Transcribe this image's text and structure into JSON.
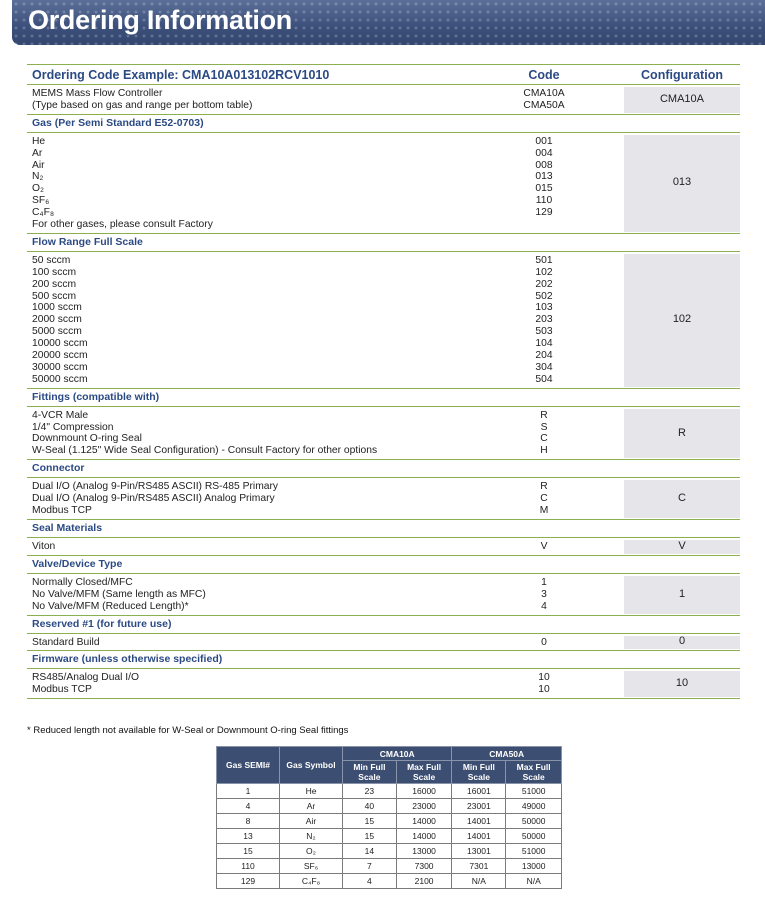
{
  "header": {
    "title": "Ordering Information"
  },
  "ordering": {
    "columns": [
      "Ordering Code Example: CMA10A013102RCV1010",
      "Code",
      "Configuration"
    ],
    "sections": [
      {
        "items": [
          {
            "label": "MEMS Mass Flow Controller",
            "code": "CMA10A"
          },
          {
            "label": "(Type based on gas and range per bottom table)",
            "code": "CMA50A"
          }
        ],
        "configuration": "CMA10A"
      },
      {
        "title": "Gas (Per Semi Standard E52-0703)",
        "items": [
          {
            "label": "He",
            "code": "001"
          },
          {
            "label": "Ar",
            "code": "004"
          },
          {
            "label": "Air",
            "code": "008"
          },
          {
            "label": "N₂",
            "code": "013"
          },
          {
            "label": "O₂",
            "code": "015"
          },
          {
            "label": "SF₆",
            "code": "110"
          },
          {
            "label": "C₄F₈",
            "code": "129"
          },
          {
            "label": "For other gases, please consult Factory"
          }
        ],
        "configuration": "013"
      },
      {
        "title": "Flow Range Full Scale",
        "items": [
          {
            "label": "50 sccm",
            "code": "501"
          },
          {
            "label": "100 sccm",
            "code": "102"
          },
          {
            "label": "200 sccm",
            "code": "202"
          },
          {
            "label": "500 sccm",
            "code": "502"
          },
          {
            "label": "1000 sccm",
            "code": "103"
          },
          {
            "label": "2000 sccm",
            "code": "203"
          },
          {
            "label": "5000 sccm",
            "code": "503"
          },
          {
            "label": "10000 sccm",
            "code": "104"
          },
          {
            "label": "20000 sccm",
            "code": "204"
          },
          {
            "label": "30000 sccm",
            "code": "304"
          },
          {
            "label": "50000 sccm",
            "code": "504"
          }
        ],
        "configuration": "102"
      },
      {
        "title": "Fittings (compatible with)",
        "items": [
          {
            "label": "4-VCR Male",
            "code": "R"
          },
          {
            "label": "1/4\" Compression",
            "code": "S"
          },
          {
            "label": "Downmount O-ring Seal",
            "code": "C"
          },
          {
            "label": "W-Seal (1.125\" Wide Seal Configuration) - Consult Factory for other options",
            "code": "H"
          }
        ],
        "configuration": "R"
      },
      {
        "title": "Connector",
        "items": [
          {
            "label": "Dual I/O (Analog 9-Pin/RS485 ASCII) RS-485 Primary",
            "code": "R"
          },
          {
            "label": "Dual I/O (Analog 9-Pin/RS485 ASCII) Analog Primary",
            "code": "C"
          },
          {
            "label": "Modbus TCP",
            "code": "M"
          }
        ],
        "configuration": "C"
      },
      {
        "title": "Seal Materials",
        "items": [
          {
            "label": "Viton",
            "code": "V"
          }
        ],
        "configuration": "V"
      },
      {
        "title": "Valve/Device Type",
        "items": [
          {
            "label": "Normally Closed/MFC",
            "code": "1"
          },
          {
            "label": "No Valve/MFM (Same length as MFC)",
            "code": "3"
          },
          {
            "label": "No Valve/MFM (Reduced Length)*",
            "code": "4"
          }
        ],
        "configuration": "1"
      },
      {
        "title": "Reserved #1 (for future use)",
        "items": [
          {
            "label": "Standard Build",
            "code": "0"
          }
        ],
        "configuration": "0"
      },
      {
        "title": "Firmware (unless otherwise specified)",
        "items": [
          {
            "label": "RS485/Analog Dual I/O",
            "code": "10"
          },
          {
            "label": "Modbus TCP",
            "code": "10"
          }
        ],
        "configuration": "10"
      }
    ]
  },
  "footnote": "* Reduced length not available for W-Seal or Downmount O-ring Seal fittings",
  "gas_table": {
    "headers": [
      "Gas SEMI#",
      "Gas Symbol"
    ],
    "groups": [
      "CMA10A",
      "CMA50A"
    ],
    "subheaders": [
      "Min Full Scale",
      "Max Full Scale",
      "Min Full Scale",
      "Max Full Scale"
    ],
    "rows": [
      [
        "1",
        "He",
        "23",
        "16000",
        "16001",
        "51000"
      ],
      [
        "4",
        "Ar",
        "40",
        "23000",
        "23001",
        "49000"
      ],
      [
        "8",
        "Air",
        "15",
        "14000",
        "14001",
        "50000"
      ],
      [
        "13",
        "N₂",
        "15",
        "14000",
        "14001",
        "50000"
      ],
      [
        "15",
        "O₂",
        "14",
        "13000",
        "13001",
        "51000"
      ],
      [
        "110",
        "SF₆",
        "7",
        "7300",
        "7301",
        "13000"
      ],
      [
        "129",
        "C₄F₈",
        "4",
        "2100",
        "N/A",
        "N/A"
      ]
    ]
  }
}
